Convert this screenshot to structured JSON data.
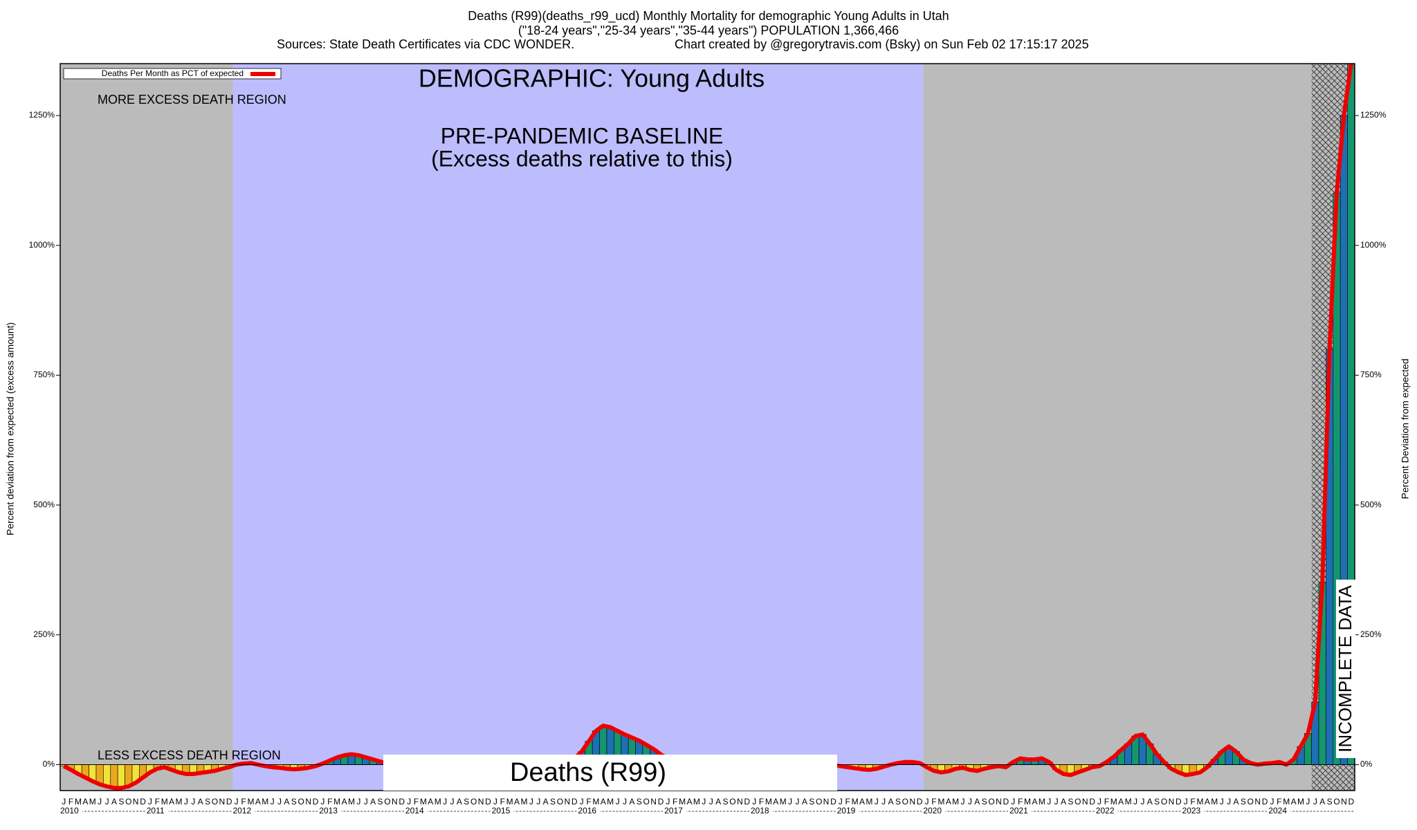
{
  "chart_data": {
    "type": "bar",
    "title": "Deaths (R99)(deaths_r99_ucd) Monthly Mortality for demographic Young Adults in Utah",
    "subtitle": "(\"18-24 years\",\"25-34 years\",\"35-44 years\") POPULATION 1,366,466",
    "sources": "Sources: State Death Certificates via CDC WONDER.",
    "credit": "Chart created by @gregorytravis.com (Bsky) on Sun Feb 02 17:15:17 2025",
    "legend_label": "Deaths Per Month as PCT of expected",
    "demographic": "DEMOGRAPHIC: Young Adults",
    "more_region": "MORE EXCESS DEATH REGION",
    "less_region": "LESS EXCESS DEATH REGION",
    "baseline_label": "PRE-PANDEMIC BASELINE",
    "baseline_note": "(Excess deaths relative to this)",
    "cause_label": "Deaths (R99)",
    "incomplete_label": "INCOMPLETE DATA",
    "y_label": "Percent deviation from expected (excess amount)",
    "y2_label": "Percent Deviation from expected",
    "month_labels": [
      "J",
      "F",
      "M",
      "A",
      "M",
      "J",
      "J",
      "A",
      "S",
      "O",
      "N",
      "D"
    ],
    "years": [
      "2010",
      "2011",
      "2012",
      "2013",
      "2014",
      "2015",
      "2016",
      "2017",
      "2018",
      "2019",
      "2020",
      "2021",
      "2022",
      "2023",
      "2024"
    ],
    "ylim": [
      -50,
      1350
    ],
    "yticks": [
      {
        "value": 0,
        "label": "0%"
      },
      {
        "value": 250,
        "label": "250%"
      },
      {
        "value": 500,
        "label": "500%"
      },
      {
        "value": 750,
        "label": "750%"
      },
      {
        "value": 1000,
        "label": "1000%"
      },
      {
        "value": 1250,
        "label": "1250%"
      }
    ],
    "line_color": "#ee0000",
    "positive_colors": [
      "#1f6fb5",
      "#14966e"
    ],
    "negative_colors": [
      "#f2e33a",
      "#e9a81e"
    ],
    "values": [
      -3,
      -10,
      -18,
      -25,
      -32,
      -38,
      -42,
      -45,
      -45,
      -42,
      -35,
      -25,
      -15,
      -8,
      -5,
      -10,
      -15,
      -18,
      -18,
      -16,
      -14,
      -12,
      -8,
      -5,
      0,
      2,
      3,
      0,
      -3,
      -5,
      -6,
      -8,
      -9,
      -8,
      -6,
      -3,
      2,
      8,
      14,
      18,
      20,
      18,
      14,
      10,
      6,
      3,
      2,
      0,
      -2,
      -3,
      -4,
      -4,
      -3,
      -2,
      -2,
      -3,
      -4,
      -4,
      -3,
      -2,
      -2,
      -2,
      -1,
      0,
      0,
      1,
      2,
      3,
      5,
      8,
      10,
      12,
      25,
      45,
      65,
      75,
      72,
      65,
      58,
      52,
      46,
      38,
      30,
      20,
      10,
      5,
      2,
      0,
      -2,
      -3,
      -3,
      -2,
      -2,
      -1,
      0,
      0,
      0,
      0,
      -1,
      -1,
      -2,
      -2,
      -3,
      -3,
      -3,
      -2,
      -2,
      -1,
      -3,
      -5,
      -7,
      -9,
      -10,
      -8,
      -4,
      0,
      3,
      5,
      5,
      3,
      -5,
      -12,
      -15,
      -13,
      -8,
      -6,
      -10,
      -12,
      -8,
      -5,
      -3,
      -5,
      5,
      12,
      10,
      10,
      12,
      5,
      -10,
      -18,
      -20,
      -15,
      -10,
      -5,
      -3,
      5,
      15,
      28,
      40,
      55,
      58,
      40,
      20,
      5,
      -8,
      -15,
      -20,
      -18,
      -15,
      -5,
      10,
      25,
      35,
      25,
      10,
      3,
      0,
      2,
      3,
      5,
      0,
      10,
      35,
      60,
      120,
      350,
      800,
      1100,
      1250,
      1350
    ]
  }
}
